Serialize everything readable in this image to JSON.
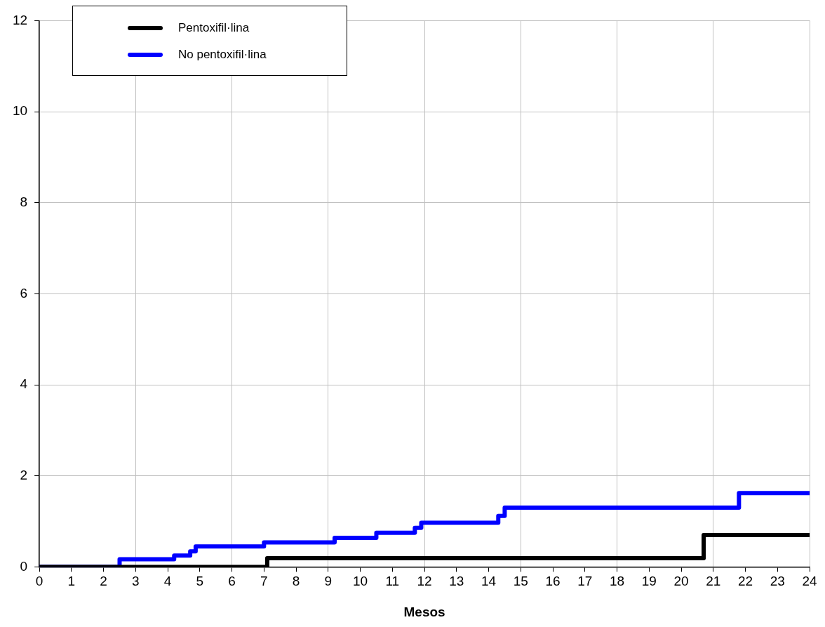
{
  "chart_data": {
    "type": "step",
    "xlabel": "Mesos",
    "series": [
      {
        "name": "Pentoxifil·lina",
        "color": "#000000",
        "x": [
          0,
          7.1,
          20.7,
          24
        ],
        "values": [
          0,
          0.19,
          0.7,
          0.7
        ]
      },
      {
        "name": "No pentoxifil·lina",
        "color": "#0000ff",
        "x": [
          0,
          2.5,
          4.2,
          4.7,
          4.87,
          7.0,
          9.2,
          10.5,
          11.7,
          11.9,
          14.3,
          14.5,
          21.8,
          24
        ],
        "values": [
          0,
          0.17,
          0.25,
          0.34,
          0.45,
          0.54,
          0.64,
          0.75,
          0.86,
          0.97,
          1.12,
          1.3,
          1.62,
          1.62
        ]
      }
    ],
    "xlim": [
      0,
      24
    ],
    "xticks": [
      0,
      1,
      2,
      3,
      4,
      5,
      6,
      7,
      8,
      9,
      10,
      11,
      12,
      13,
      14,
      15,
      16,
      17,
      18,
      19,
      20,
      21,
      22,
      23,
      24
    ],
    "ylim": [
      0,
      12
    ],
    "yticks": [
      0,
      2,
      4,
      6,
      8,
      10,
      12
    ],
    "grid": true,
    "legend": "top left",
    "marker": "none",
    "line_style": "solid"
  }
}
